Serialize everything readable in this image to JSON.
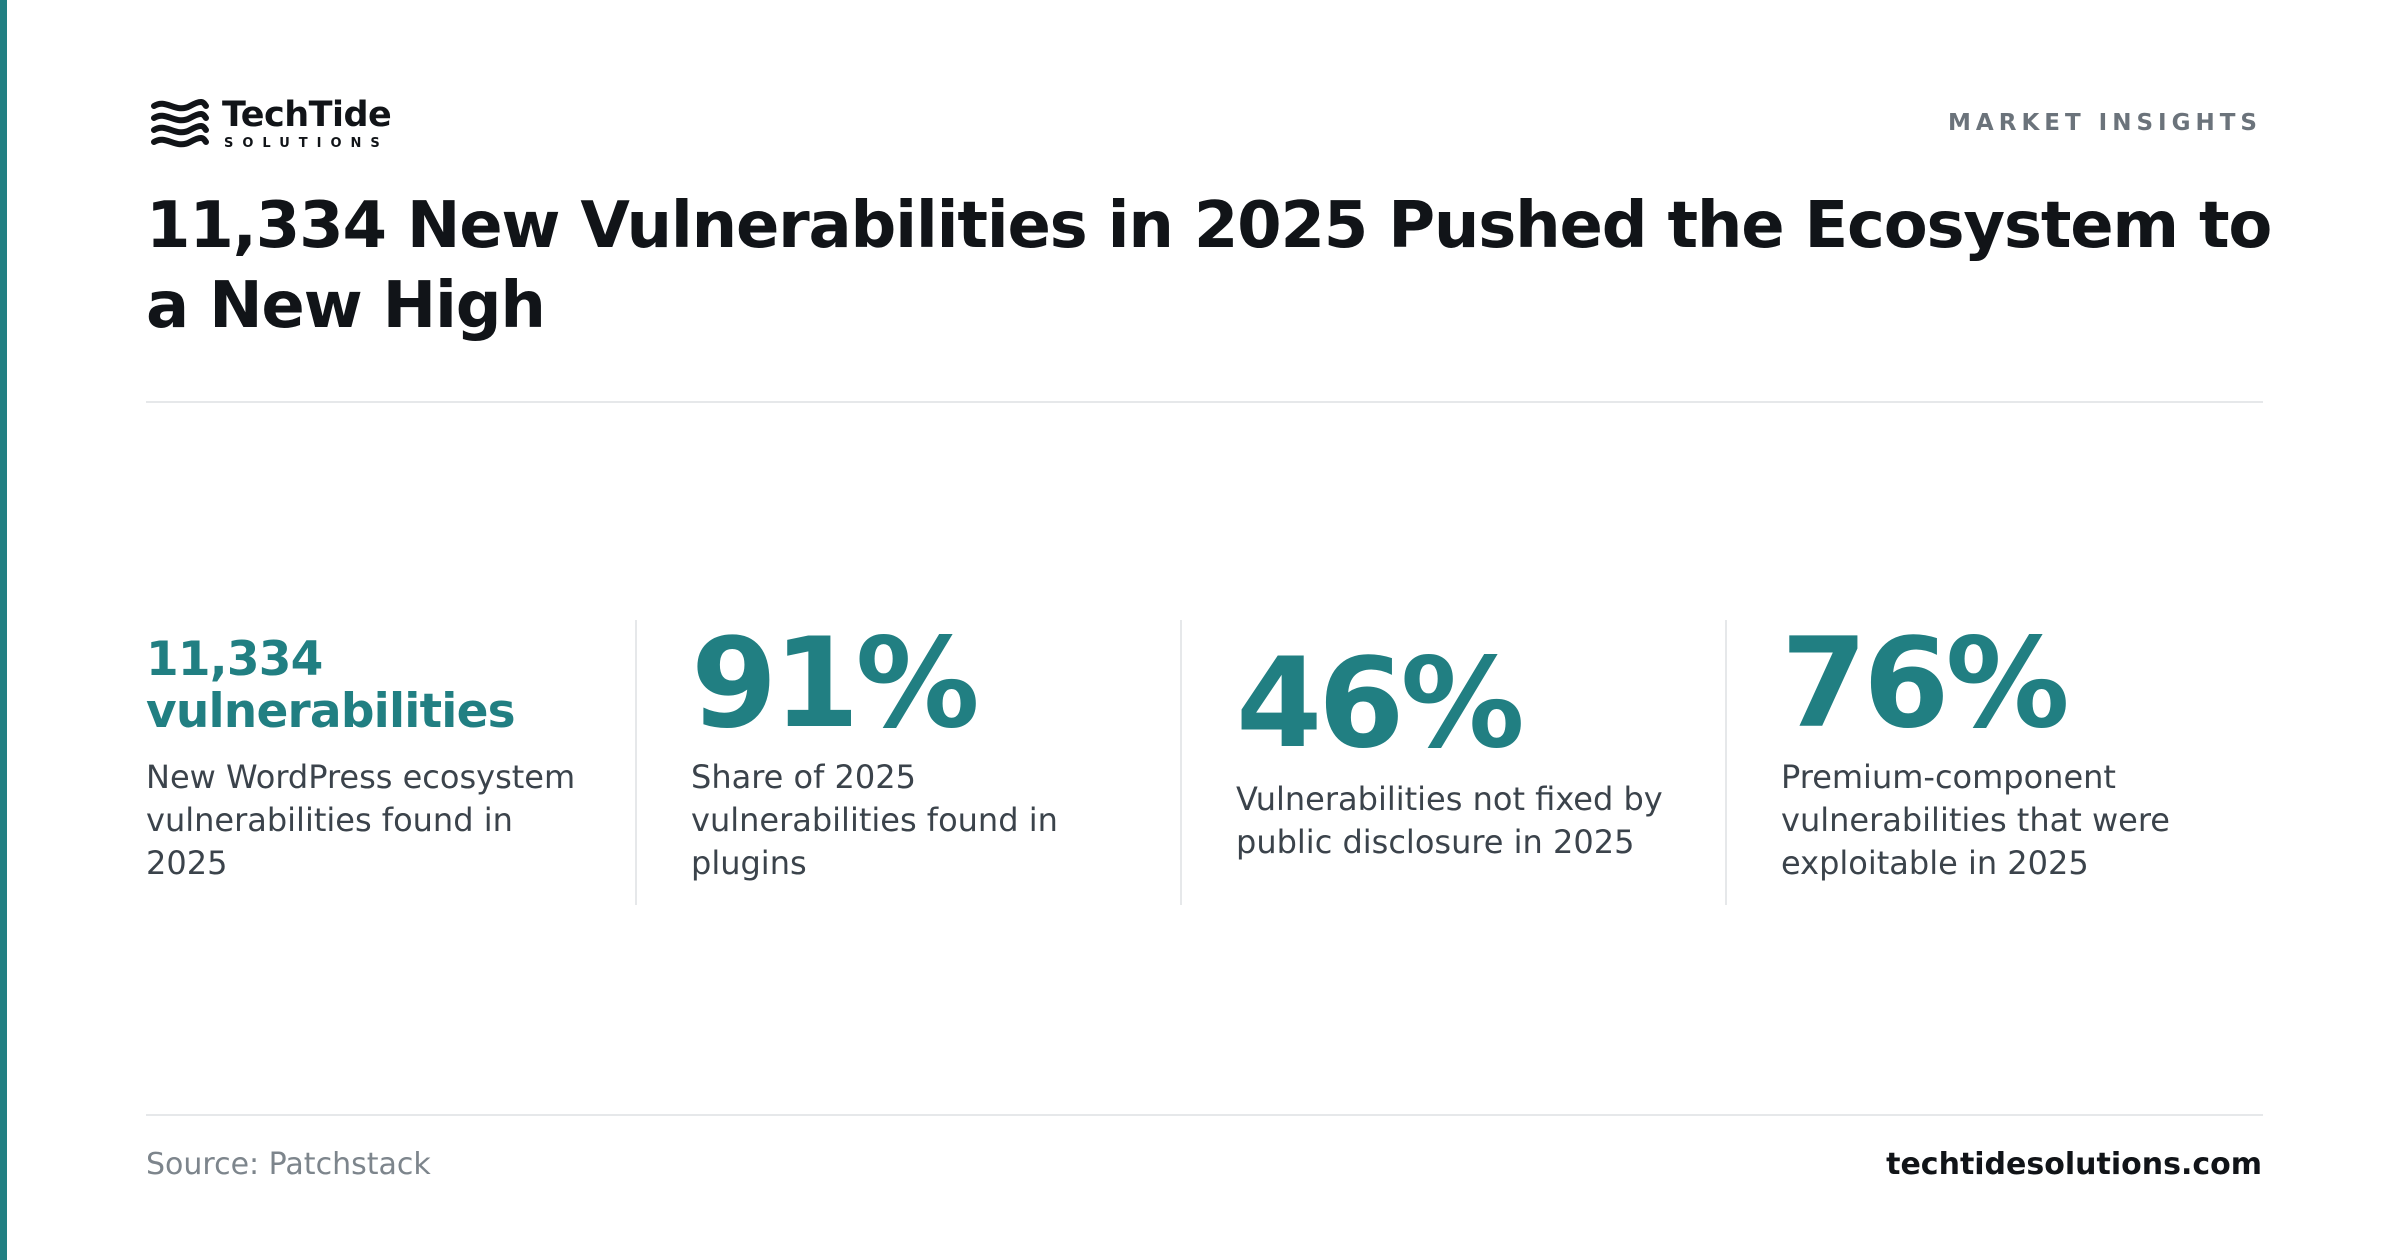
{
  "brand": {
    "name": "TechTide",
    "tagline": "SOLUTIONS",
    "logo_icon": "wave-lines-icon",
    "accent_color": "#217f82"
  },
  "section_label": "MARKET INSIGHTS",
  "headline": "11,334 New Vulnerabilities in 2025 Pushed the Ecosystem to a New High",
  "stats": [
    {
      "value": "11,334 vulnerabilities",
      "description": "New WordPress ecosystem vulnerabilities found in 2025"
    },
    {
      "value": "91%",
      "description": "Share of 2025 vulnerabilities found in plugins"
    },
    {
      "value": "46%",
      "description": "Vulnerabilities not fixed by public disclosure in 2025"
    },
    {
      "value": "76%",
      "description": "Premium-component vulnerabilities that were exploitable in 2025"
    }
  ],
  "footer": {
    "source": "Source: Patchstack",
    "website": "techtidesolutions.com"
  }
}
